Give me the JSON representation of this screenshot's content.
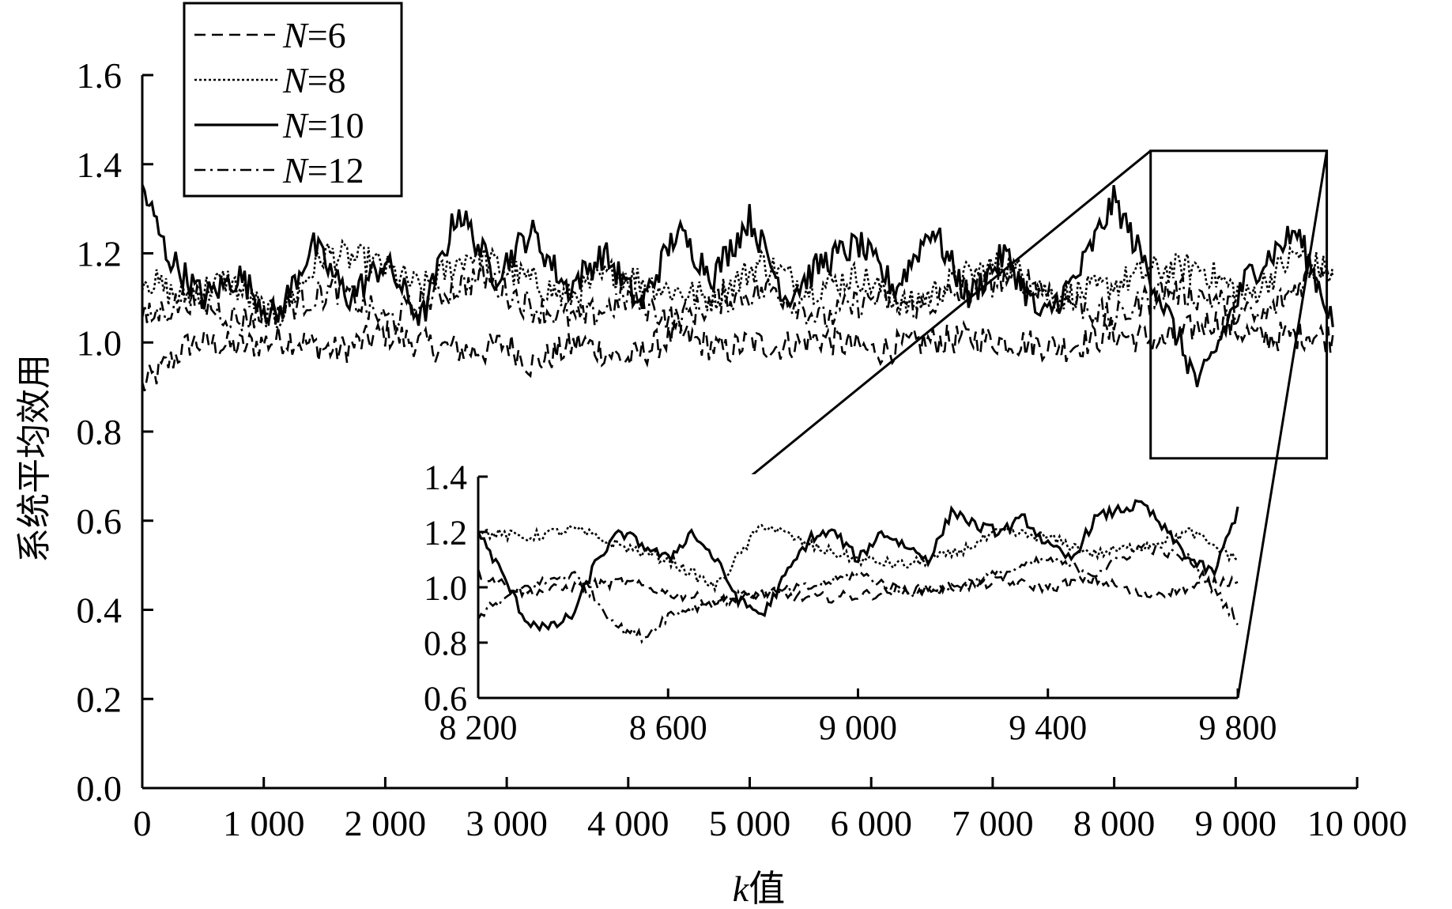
{
  "chart_data": [
    {
      "type": "line",
      "xlabel_italic": "k",
      "xlabel_rest": "值",
      "ylabel": "系统平均效用",
      "xlim": [
        0,
        10000
      ],
      "ylim": [
        0.0,
        1.6
      ],
      "xticks": [
        0,
        1000,
        2000,
        3000,
        4000,
        5000,
        6000,
        7000,
        8000,
        9000,
        10000
      ],
      "xtick_labels": [
        "0",
        "1 000",
        "2 000",
        "3 000",
        "4 000",
        "5 000",
        "6 000",
        "7 000",
        "8 000",
        "9 000",
        "10 000"
      ],
      "yticks": [
        0.0,
        0.2,
        0.4,
        0.6,
        0.8,
        1.0,
        1.2,
        1.4,
        1.6
      ],
      "ytick_labels": [
        "0.0",
        "0.2",
        "0.4",
        "0.6",
        "0.8",
        "1.0",
        "1.2",
        "1.4",
        "1.6"
      ],
      "legend": {
        "placement": "top-left",
        "entries": [
          {
            "var": "N",
            "rest": "=6",
            "style": "dashed"
          },
          {
            "var": "N",
            "rest": "=8",
            "style": "dotted"
          },
          {
            "var": "N",
            "rest": "=10",
            "style": "solid"
          },
          {
            "var": "N",
            "rest": "=12",
            "style": "dashdot"
          }
        ]
      },
      "series": [
        {
          "name": "N=6",
          "style": "dashed",
          "x": [
            0,
            400,
            800,
            1200,
            1600,
            2000,
            2400,
            2800,
            3000,
            3200,
            3600,
            4000,
            4400,
            4800,
            5000,
            5200,
            5600,
            6000,
            6400,
            6800,
            7200,
            7600,
            8000,
            8400,
            8800,
            9200,
            9600,
            9800
          ],
          "y": [
            0.9,
            1.0,
            0.99,
            1.01,
            0.98,
            1.02,
            0.99,
            0.98,
            1.0,
            0.95,
            1.0,
            0.96,
            1.02,
            0.98,
            1.0,
            0.99,
            1.01,
            0.98,
            1.0,
            1.01,
            1.0,
            0.99,
            1.02,
            1.0,
            1.05,
            1.01,
            1.02,
            1.01
          ]
        },
        {
          "name": "N=8",
          "style": "dotted",
          "x": [
            0,
            300,
            700,
            1100,
            1500,
            1900,
            2300,
            2700,
            3100,
            3500,
            3900,
            4300,
            4700,
            5100,
            5500,
            5900,
            6300,
            6700,
            7100,
            7500,
            7900,
            8300,
            8700,
            9100,
            9500,
            9800
          ],
          "y": [
            1.15,
            1.1,
            1.14,
            1.05,
            1.2,
            1.18,
            1.12,
            1.2,
            1.15,
            1.1,
            1.16,
            1.12,
            1.1,
            1.18,
            1.12,
            1.15,
            1.08,
            1.14,
            1.18,
            1.1,
            1.12,
            1.16,
            1.17,
            1.1,
            1.2,
            1.15
          ]
        },
        {
          "name": "N=10",
          "style": "solid",
          "x": [
            0,
            200,
            500,
            800,
            1100,
            1400,
            1700,
            2000,
            2300,
            2600,
            2900,
            3200,
            3500,
            3800,
            4100,
            4400,
            4700,
            5000,
            5300,
            5600,
            5900,
            6200,
            6500,
            6800,
            7100,
            7400,
            7700,
            8000,
            8300,
            8700,
            9100,
            9500,
            9800
          ],
          "y": [
            1.35,
            1.2,
            1.1,
            1.15,
            1.05,
            1.22,
            1.1,
            1.18,
            1.05,
            1.3,
            1.15,
            1.25,
            1.12,
            1.2,
            1.08,
            1.25,
            1.15,
            1.28,
            1.1,
            1.18,
            1.22,
            1.12,
            1.26,
            1.1,
            1.2,
            1.05,
            1.15,
            1.32,
            1.15,
            0.9,
            1.15,
            1.25,
            1.05
          ]
        },
        {
          "name": "N=12",
          "style": "dashdot",
          "x": [
            0,
            400,
            800,
            1200,
            1600,
            2000,
            2400,
            2800,
            3200,
            3600,
            4000,
            4400,
            4800,
            5200,
            5600,
            6000,
            6400,
            6800,
            7200,
            7600,
            8000,
            8400,
            8800,
            9200,
            9600,
            9800
          ],
          "y": [
            1.05,
            1.1,
            1.05,
            1.08,
            1.12,
            1.05,
            1.1,
            1.15,
            1.08,
            1.05,
            1.1,
            1.05,
            1.1,
            1.12,
            1.05,
            1.1,
            1.08,
            1.12,
            1.15,
            1.1,
            1.05,
            1.12,
            1.1,
            1.05,
            1.15,
            1.18
          ]
        }
      ]
    },
    {
      "type": "line",
      "role": "inset",
      "zoom_range": [
        8200,
        9800
      ],
      "xlim": [
        8200,
        9800
      ],
      "ylim": [
        0.6,
        1.4
      ],
      "xticks": [
        8200,
        8600,
        9000,
        9400,
        9800
      ],
      "xtick_labels": [
        "8 200",
        "8 600",
        "9 000",
        "9 400",
        "9 800"
      ],
      "yticks": [
        0.6,
        0.8,
        1.0,
        1.2,
        1.4
      ],
      "ytick_labels": [
        "0.6",
        "0.8",
        "1.0",
        "1.2",
        "1.4"
      ],
      "series": [
        {
          "name": "N=6",
          "style": "dashed",
          "x": [
            8200,
            8300,
            8400,
            8500,
            8600,
            8700,
            8800,
            8900,
            9000,
            9100,
            9200,
            9300,
            9400,
            9500,
            9600,
            9700,
            9800
          ],
          "y": [
            1.05,
            0.98,
            1.0,
            1.02,
            0.98,
            0.95,
            0.98,
            0.96,
            0.97,
            0.99,
            1.0,
            1.02,
            1.0,
            1.03,
            0.97,
            1.0,
            1.03
          ]
        },
        {
          "name": "N=8",
          "style": "dotted",
          "x": [
            8200,
            8300,
            8400,
            8500,
            8600,
            8700,
            8800,
            8900,
            9000,
            9100,
            9200,
            9300,
            9400,
            9500,
            9600,
            9700,
            9800
          ],
          "y": [
            1.2,
            1.18,
            1.21,
            1.15,
            1.1,
            1.0,
            1.23,
            1.15,
            1.1,
            1.08,
            1.12,
            1.2,
            1.18,
            1.12,
            1.15,
            1.2,
            1.1
          ]
        },
        {
          "name": "N=10",
          "style": "solid",
          "x": [
            8200,
            8250,
            8300,
            8350,
            8400,
            8450,
            8500,
            8550,
            8600,
            8650,
            8700,
            8750,
            8800,
            8850,
            8900,
            8950,
            9000,
            9050,
            9100,
            9150,
            9200,
            9250,
            9300,
            9350,
            9400,
            9450,
            9500,
            9550,
            9600,
            9650,
            9700,
            9750,
            9800
          ],
          "y": [
            1.2,
            1.05,
            0.88,
            0.85,
            0.9,
            1.1,
            1.2,
            1.15,
            1.1,
            1.2,
            1.1,
            0.95,
            0.9,
            1.05,
            1.18,
            1.2,
            1.1,
            1.2,
            1.15,
            1.1,
            1.28,
            1.22,
            1.2,
            1.25,
            1.15,
            1.1,
            1.25,
            1.28,
            1.3,
            1.2,
            1.1,
            1.05,
            1.28
          ]
        },
        {
          "name": "N=12",
          "style": "dashdot",
          "x": [
            8200,
            8300,
            8400,
            8500,
            8550,
            8600,
            8700,
            8800,
            8900,
            9000,
            9100,
            9200,
            9300,
            9400,
            9500,
            9600,
            9700,
            9800
          ],
          "y": [
            0.9,
            1.0,
            1.05,
            0.85,
            0.82,
            0.9,
            0.95,
            0.98,
            1.0,
            1.05,
            0.98,
            1.0,
            1.05,
            1.1,
            1.05,
            1.15,
            1.1,
            0.88
          ]
        }
      ]
    }
  ]
}
